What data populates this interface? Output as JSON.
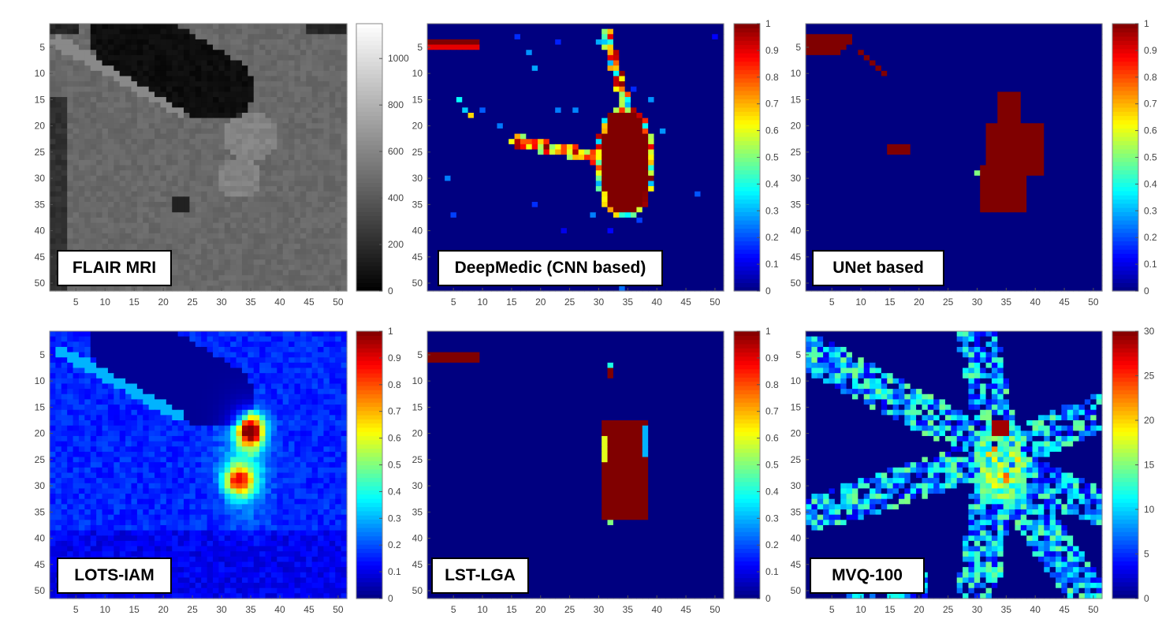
{
  "chart_data": [
    {
      "type": "heatmap",
      "title": "FLAIR MRI",
      "colormap": "gray",
      "clim": [
        0,
        1150
      ],
      "grid": [
        51,
        51
      ],
      "xticks": [
        5,
        10,
        15,
        20,
        25,
        30,
        35,
        40,
        45,
        50
      ],
      "yticks": [
        5,
        10,
        15,
        20,
        25,
        30,
        35,
        40,
        45,
        50
      ],
      "colorbar_ticks": [
        0,
        200,
        400,
        600,
        800,
        1000
      ]
    },
    {
      "type": "heatmap",
      "title": "DeepMedic (CNN based)",
      "colormap": "jet",
      "clim": [
        0,
        1
      ],
      "grid": [
        51,
        51
      ],
      "xticks": [
        5,
        10,
        15,
        20,
        25,
        30,
        35,
        40,
        45,
        50
      ],
      "yticks": [
        5,
        10,
        15,
        20,
        25,
        30,
        35,
        40,
        45,
        50
      ],
      "colorbar_ticks": [
        0,
        0.1,
        0.2,
        0.3,
        0.4,
        0.5,
        0.6,
        0.7,
        0.8,
        0.9,
        1
      ]
    },
    {
      "type": "heatmap",
      "title": "UNet based",
      "colormap": "jet",
      "clim": [
        0,
        1
      ],
      "grid": [
        51,
        51
      ],
      "xticks": [
        5,
        10,
        15,
        20,
        25,
        30,
        35,
        40,
        45,
        50
      ],
      "yticks": [
        5,
        10,
        15,
        20,
        25,
        30,
        35,
        40,
        45,
        50
      ],
      "colorbar_ticks": [
        0,
        0.1,
        0.2,
        0.3,
        0.4,
        0.5,
        0.6,
        0.7,
        0.8,
        0.9,
        1
      ]
    },
    {
      "type": "heatmap",
      "title": "LOTS-IAM",
      "colormap": "jet",
      "clim": [
        0,
        1
      ],
      "grid": [
        51,
        51
      ],
      "xticks": [
        5,
        10,
        15,
        20,
        25,
        30,
        35,
        40,
        45,
        50
      ],
      "yticks": [
        5,
        10,
        15,
        20,
        25,
        30,
        35,
        40,
        45,
        50
      ],
      "colorbar_ticks": [
        0,
        0.1,
        0.2,
        0.3,
        0.4,
        0.5,
        0.6,
        0.7,
        0.8,
        0.9,
        1
      ]
    },
    {
      "type": "heatmap",
      "title": "LST-LGA",
      "colormap": "jet",
      "clim": [
        0,
        1
      ],
      "grid": [
        51,
        51
      ],
      "xticks": [
        5,
        10,
        15,
        20,
        25,
        30,
        35,
        40,
        45,
        50
      ],
      "yticks": [
        5,
        10,
        15,
        20,
        25,
        30,
        35,
        40,
        45,
        50
      ],
      "colorbar_ticks": [
        0,
        0.1,
        0.2,
        0.3,
        0.4,
        0.5,
        0.6,
        0.7,
        0.8,
        0.9,
        1
      ]
    },
    {
      "type": "heatmap",
      "title": "MVQ-100",
      "colormap": "jet",
      "clim": [
        0,
        30
      ],
      "grid": [
        51,
        51
      ],
      "xticks": [
        5,
        10,
        15,
        20,
        25,
        30,
        35,
        40,
        45,
        50
      ],
      "yticks": [
        5,
        10,
        15,
        20,
        25,
        30,
        35,
        40,
        45,
        50
      ],
      "colorbar_ticks": [
        0,
        5,
        10,
        15,
        20,
        25,
        30
      ]
    }
  ]
}
